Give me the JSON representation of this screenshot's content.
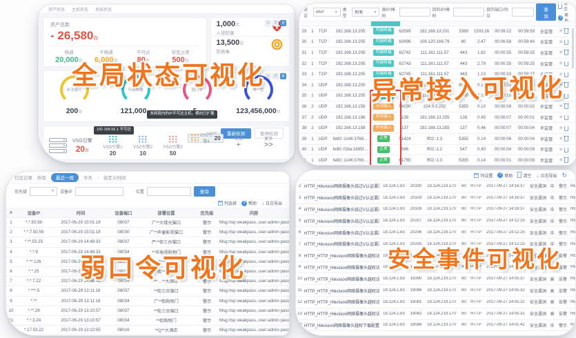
{
  "captions": {
    "global": "全局状态可视化",
    "flow": "异常接入可视化",
    "weak": "弱口令可视化",
    "event": "安全事件可视化"
  },
  "colors": {
    "accent_blue": "#4a90d9",
    "alert_red": "#e85044",
    "caption_orange": "#f2741d",
    "badge_suspicious": "#4cc5c3",
    "badge_illegal": "#f5a95c",
    "badge_normal": "#46bf6b"
  },
  "global_panel": {
    "nav": [
      "资产状态",
      "主机状态",
      "系统状态"
    ],
    "assets": {
      "title": "资产总数",
      "total": "- 26,580",
      "unit": "台",
      "stats": [
        {
          "label": "畅通",
          "value": "20,000",
          "unit": "台",
          "color": "#3cb88a"
        },
        {
          "label": "不畅通",
          "value": "6,000",
          "unit": "台",
          "color": "#f5a623"
        },
        {
          "label": "不可达",
          "value": "80",
          "unit": "台",
          "color": "#e85044"
        },
        {
          "label": "带宽占用",
          "value": "500",
          "unit": "台",
          "color": "#e85044"
        }
      ]
    },
    "side_stats": [
      {
        "value": "1,000",
        "unit": "次",
        "label": "入侵防御",
        "icon": "shield-icon"
      },
      {
        "value": "13,500",
        "unit": "次",
        "label": "防病毒",
        "icon": "virus-shield-icon"
      }
    ],
    "period_chips": [
      "日",
      "周",
      "月"
    ],
    "gauges": [
      {
        "label": "非法接入",
        "value": "200",
        "unit": "台",
        "color": "#f0c42f"
      },
      {
        "label": "可疑终端",
        "value": "121,000",
        "unit": "台",
        "color": "#2ec7c9"
      },
      {
        "label": "弱口令",
        "value": "5",
        "unit": "台",
        "color": "#e8537f"
      },
      {
        "label": "唯一性",
        "value": "123,456,000",
        "unit": "台",
        "color": "#3a4fd7"
      }
    ],
    "engine_bar": {
      "label": "VSG引擎",
      "value": "20",
      "unit": "台",
      "tiles": [
        {
          "name": "VSG引擎1",
          "value": "20",
          "color": "#35c3bd",
          "tooltip": "192.168.56.1 不可达",
          "selected": false
        },
        {
          "name": "VSG引擎2",
          "value": "10",
          "color": "#7fb2e8",
          "tooltip": "",
          "selected": false
        },
        {
          "name": "VSG引擎3",
          "value": "50",
          "color": "#ee8f8f",
          "tooltip": "",
          "selected": false
        },
        {
          "name": "VSG引擎4",
          "value": "20",
          "color": "#f0b25a",
          "tooltip": "本网段内的IP不可达主机，横向已扩展",
          "selected": true
        }
      ],
      "add_label": "添加",
      "add_glyph": "+",
      "more_label": "更多",
      "more_glyph": ">>",
      "countdown": "259秒",
      "rescan_button": "重新检测",
      "pause_button": "暂停检测"
    }
  },
  "flow_panel": {
    "filters": {
      "protocol_label": "协议",
      "protocol_value": "ANY",
      "type_label": "类型",
      "type_value": "所有",
      "src_label": "源IP/掩码",
      "dst_label": "目的IP/掩码",
      "dport_label": "目的端口/协议",
      "search_button": "查询",
      "clear_label": "清空",
      "help_label": "帮助"
    },
    "badge_colors": {
      "可疑终端": "#4cc5c3",
      "非法接入": "#f5a95c",
      "正常": "#46bf6b"
    },
    "rows": [
      [
        "29",
        "1",
        "TCP",
        "192.168.13.205",
        "可疑终端",
        "62599",
        "192.168.13.201",
        "3389",
        "1503.26",
        "00:09:22",
        "00:59:59",
        "全监管"
      ],
      [
        "30",
        "1",
        "TCP",
        "192.168.13.205",
        "可疑终端",
        "62696",
        "106.120.166.79",
        "80",
        "2.47",
        "00:06:58",
        "00:59:44",
        "全监管"
      ],
      [
        "31",
        "1",
        "TCP",
        "192.168.13.205",
        "可疑终端",
        "62742",
        "111.161.111.57",
        "443",
        "1.82",
        "00:00:35",
        "00:59:25",
        "全监管"
      ],
      [
        "32",
        "1",
        "TCP",
        "192.168.13.205",
        "可疑终端",
        "62743",
        "111.161.111.57",
        "443",
        "2.79",
        "00:00:35",
        "00:59:25",
        "全监管"
      ],
      [
        "33",
        "1",
        "TCP",
        "192.168.13.205",
        "可疑终端",
        "62745",
        "111.161.111.57",
        "443",
        "1.13",
        "00:00:33",
        "00:59:27",
        "全监管"
      ],
      [
        "34",
        "1",
        "UDP",
        "192.168.13.205",
        "可疑终端",
        "5002",
        "112.90.141.3",
        "8000",
        "0.16",
        "00:00:25",
        "00:00:05",
        "全监管"
      ],
      [
        "35",
        "1",
        "UDP",
        "192.168.13.205",
        "可疑终端",
        "5000",
        "112.90.141.3",
        "8000",
        "0.18",
        "00:00:15",
        "00:00:05",
        "全监管"
      ],
      [
        "36",
        "2",
        "UDP",
        "192.168.13.158",
        "非法接入",
        "54290",
        "224.0.0.252",
        "5355",
        "0.10",
        "00:00:08",
        "00:00:02",
        "半监管"
      ],
      [
        "37",
        "2",
        "UDP",
        "192.168.13.198",
        "非法接入",
        "138",
        "192.168.13.255",
        "138",
        "0.45",
        "00:00:07",
        "00:00:01",
        "半监管"
      ],
      [
        "38",
        "2",
        "UDP",
        "192.168.13.158",
        "非法接入",
        "137",
        "192.168.13.255",
        "137",
        "0.46",
        "00:00:07",
        "00:00:04",
        "半监管"
      ],
      [
        "39",
        "1",
        "UDP",
        "fe80::1146:3768…",
        "正常",
        "51424",
        "ff02::1:3",
        "5355",
        "0.14",
        "00:00:06",
        "00:00:04",
        "半监管"
      ],
      [
        "40",
        "1",
        "UDP",
        "fe80::f18a:1895f…",
        "正常",
        "546",
        "ff02::1:2",
        "547",
        "0.40",
        "00:00:04",
        "00:00:09",
        "半监管"
      ],
      [
        "41",
        "1",
        "UDP",
        "fe80::1146:3768…",
        "正常",
        "61755",
        "ff02::1:3",
        "5355",
        "0.14",
        "00:00:01",
        "00:00:09",
        "半监管"
      ]
    ]
  },
  "weakpass_panel": {
    "toolbar": {
      "title": "日志记录",
      "tabs": [
        "所有",
        "最近一周",
        "今天",
        "自定义时间"
      ],
      "active_tab": "最近一周"
    },
    "filters": {
      "priority_label": "优先级",
      "device_ip_label": "设备IP",
      "location_label": "位置",
      "search_button": "查询"
    },
    "actions": [
      "列选择",
      "帮助",
      "日志导出"
    ],
    "headers": [
      "#",
      "设备IP",
      "时间",
      "设备端口",
      "部署位置",
      "优先级",
      "内容"
    ],
    "rows": [
      [
        "1",
        "*.*.50.58",
        "2017-06-29 15:01:18",
        "08037",
        "广**大楼光猫口",
        "警示",
        "Msg:rtsp weakpass, user:admin pass:*"
      ],
      [
        "2",
        "*.*.7.50.59",
        "2017-06-29 15:01:18",
        "08030",
        "广**声童影视猫口",
        "警示",
        "Msg:rtsp weakpass, user:admin pass:*"
      ],
      [
        "3",
        "*.**.53.25",
        "2017-06-29 14:48:33",
        "08037",
        "严**街三台猫口",
        "警示",
        "Msg:rtsp weakpass, user:admin pass:*"
      ],
      [
        "4",
        "*.*.9",
        "2017-06-29 14:48:33",
        "08034",
        "**市电视购物门",
        "警示",
        "Msg:rtsp weakpass, user:admin pass:*"
      ],
      [
        "5",
        "*.**.126",
        "2017-06-29 14:48:51",
        "08016",
        "**街**光猫口",
        "警示",
        "Msg:rtsp weakpass, user:admin pass:*"
      ],
      [
        "6",
        "*.*.25",
        "2017-06-29 14:48:51",
        "08037",
        "**街**光猫口",
        "警示",
        "Msg:rtsp weakpass, user:admin pass:*"
      ],
      [
        "7",
        "*.*.7.22",
        "2017-06-29 14:48:48",
        "08016",
        "**…**大酒店",
        "警示",
        "Msg:rtsp weakpass, user:admin pass:*"
      ],
      [
        "8",
        "*.***.5",
        "2017-06-29 13:11:18",
        "08037",
        "**街三台猫口",
        "警示",
        "Msg:rtsp weakpass, user:admin pass:*"
      ],
      [
        "9",
        "*.**",
        "2017-06-29 13:11:18",
        "08034",
        "广**街购物门",
        "警示",
        "Msg:rtsp weakpass, user:admin pass:*"
      ],
      [
        "10",
        "*.**.28",
        "2017-06-29 13:10:57",
        "08037",
        "**街三台猫口",
        "警示",
        "Msg:rtsp weakpass, user:admin pass:*"
      ],
      [
        "11",
        "*.*.3.24",
        "2017-06-29 13:10:57",
        "08034",
        "**街购物门",
        "警示",
        "Msg:rtsp weakpass, user:admin pass:*"
      ],
      [
        "12",
        "*.17.53.22",
        "2017-06-29 13:10:55",
        "08016",
        "**Q**大酒店",
        "警示",
        "Msg:rtsp weakpass, user:admin pass:*"
      ]
    ]
  },
  "events_panel": {
    "actions": [
      "列设置",
      "帮助",
      "清空",
      "日志导出"
    ],
    "rows": [
      [
        "2",
        "HTTP_Hikvision网络摄像头绕过V认证漏洞",
        "18.124.1.83",
        "20330",
        "18.124.219.170",
        "80",
        "HTTP",
        "2017-09-27 14:16:37",
        "安全漏洞",
        "中",
        "警示",
        "RESET",
        "1"
      ],
      [
        "3",
        "HTTP_Hikvision网络摄像头绕过V认证漏洞",
        "18.124.1.83",
        "20329",
        "18.124.219.170",
        "80",
        "HTTP",
        "2017-09-27 14:16:37",
        "安全漏洞",
        "中",
        "警示",
        "RESET",
        "1"
      ],
      [
        "4",
        "HTTP_Hikvision网络摄像头绕过V认证漏洞",
        "18.124.1.83",
        "20328",
        "18.124.219.170",
        "80",
        "HTTP",
        "2017-09-27 14:16:37",
        "安全漏洞",
        "中",
        "警示",
        "RESET",
        "1"
      ],
      [
        "5",
        "HTTP_Hikvision网络摄像头绕过V认证漏洞",
        "18.124.1.83",
        "20207",
        "18.124.219.170",
        "80",
        "HTTP",
        "2017-09-27 14:12:25",
        "安全漏洞",
        "中",
        "警示",
        "RESET",
        "1"
      ],
      [
        "6",
        "HTTP_Hikvision网络摄像头绕过V认证漏洞",
        "18.124.1.83",
        "20206",
        "18.124.219.170",
        "80",
        "HTTP",
        "2017-09-27 14:12:25",
        "安全漏洞",
        "中",
        "警示",
        "RESET",
        "1"
      ],
      [
        "7",
        "HTTP_Hikvision网络摄像头绕过V认证漏洞",
        "18.124.1.83",
        "20205",
        "18.124.219.170",
        "80",
        "HTTP",
        "2017-09-27 14:12:25",
        "安全漏洞",
        "中",
        "警示",
        "RESET",
        "1"
      ],
      [
        "8",
        "HTTP_HTTP_Hikvision网络摄像头越权访问漏洞1",
        "18.124.1.83",
        "19391",
        "18.124.219.170",
        "80",
        "HTTP",
        "2017-09-27 14:05:37",
        "安全漏洞",
        "高",
        "告警",
        "RESET",
        "1"
      ],
      [
        "9",
        "HTTP_HTTP_Hikvision网络摄像头越权访问漏洞1",
        "18.124.1.83",
        "19389",
        "18.124.219.170",
        "80",
        "HTTP",
        "2017-09-27 14:05:37",
        "安全漏洞",
        "高",
        "告警",
        "RESET",
        "1"
      ],
      [
        "10",
        "HTTP_HTTP_Hikvision网络摄像头越权访问漏洞1",
        "18.124.1.83",
        "19390",
        "18.124.219.170",
        "80",
        "HTTP",
        "2017-09-27 14:05:37",
        "安全漏洞",
        "高",
        "告警",
        "RESET",
        "1"
      ],
      [
        "11",
        "HTTP_HTTP_Hikvision网络摄像头越权访问漏洞1",
        "18.124.1.83",
        "19086",
        "18.124.219.170",
        "80",
        "HTTP",
        "2017-09-27 14:05:32",
        "安全漏洞",
        "高",
        "告警",
        "RESET",
        "1"
      ],
      [
        "12",
        "HTTP_HTTP_Hikvision网络摄像头越权访问漏洞1",
        "18.124.1.83",
        "19081",
        "18.124.219.170",
        "80",
        "HTTP",
        "2017-09-27 14:05:32",
        "安全漏洞",
        "高",
        "告警",
        "RESET",
        "1"
      ],
      [
        "13",
        "HTTP_HTTP_Hikvision网络摄像头越权访问漏洞1",
        "18.124.1.83",
        "19082",
        "18.124.219.170",
        "80",
        "HTTP",
        "2017-09-27 14:05:31",
        "安全漏洞",
        "高",
        "告警",
        "RESET",
        "1"
      ],
      [
        "14",
        "HTTP_Hikvision网络摄像头越权下载配置文件漏洞",
        "18.124.1.83",
        "18566",
        "18.124.219.170",
        "80",
        "HTTP",
        "2017-09-27 14:01:42",
        "安全漏洞",
        "中",
        "警示",
        "RESET",
        "1"
      ]
    ]
  }
}
